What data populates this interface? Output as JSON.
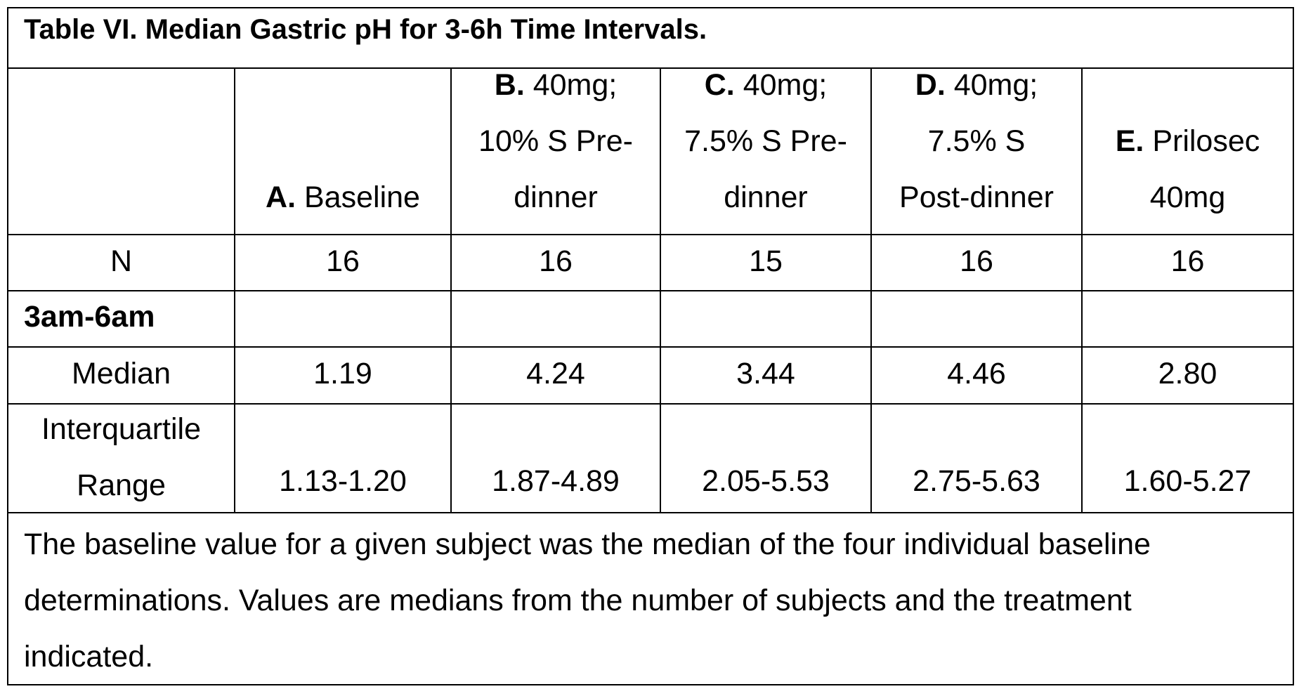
{
  "table": {
    "title": "Table VI.  Median Gastric pH for 3-6h Time Intervals.",
    "headers": [
      {
        "letter": "",
        "lines": [
          ""
        ]
      },
      {
        "letter": "A.",
        "lines": [
          "Baseline"
        ]
      },
      {
        "letter": "B.",
        "lines": [
          "40mg;",
          "10% S Pre-",
          "dinner"
        ]
      },
      {
        "letter": "C.",
        "lines": [
          "40mg;",
          "7.5% S Pre-",
          "dinner"
        ]
      },
      {
        "letter": "D.",
        "lines": [
          "40mg;",
          "7.5% S",
          "Post-dinner"
        ]
      },
      {
        "letter": "E.",
        "lines": [
          "Prilosec",
          "40mg"
        ]
      }
    ],
    "n_row": {
      "label": "N",
      "values": [
        "16",
        "16",
        "15",
        "16",
        "16"
      ]
    },
    "section": {
      "label": "3am-6am"
    },
    "median_row": {
      "label": "Median",
      "values": [
        "1.19",
        "4.24",
        "3.44",
        "4.46",
        "2.80"
      ]
    },
    "iqr_row": {
      "label_line1": "Interquartile",
      "label_line2": "Range",
      "values": [
        "1.13-1.20",
        "1.87-4.89",
        "2.05-5.53",
        "2.75-5.63",
        "1.60-5.27"
      ]
    },
    "footnote": {
      "line1": "The baseline value for a given subject was the median of the four individual baseline",
      "line2": "determinations. Values are medians from the number of subjects and the treatment",
      "line3": "indicated."
    }
  }
}
